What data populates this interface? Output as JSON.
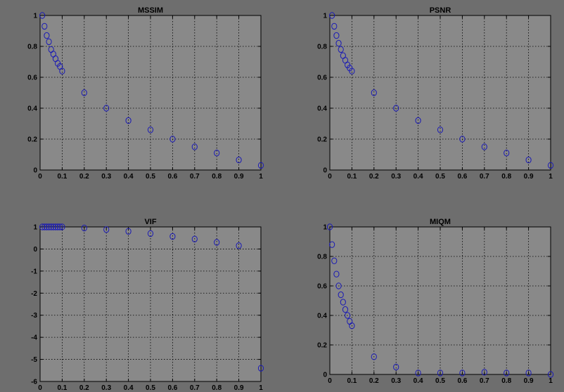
{
  "figure": {
    "colors": {
      "figure_bg": "#6e6e6e",
      "axes_bg": "#898989",
      "marker": "#1b1bb4",
      "text": "#000000"
    }
  },
  "chart_data": [
    {
      "type": "scatter",
      "title": "MSSIM",
      "xlim": [
        0,
        1
      ],
      "ylim": [
        0,
        1
      ],
      "xticks": [
        "0",
        "0.1",
        "0.2",
        "0.3",
        "0.4",
        "0.5",
        "0.6",
        "0.7",
        "0.8",
        "0.9",
        "1"
      ],
      "yticks": [
        "0",
        "0.2",
        "0.4",
        "0.6",
        "0.8",
        "1"
      ],
      "grid": true,
      "marker": "circle",
      "x": [
        0.01,
        0.02,
        0.03,
        0.04,
        0.05,
        0.06,
        0.07,
        0.08,
        0.09,
        0.1,
        0.2,
        0.3,
        0.4,
        0.5,
        0.6,
        0.7,
        0.8,
        0.9,
        1.0
      ],
      "y": [
        1.0,
        0.93,
        0.87,
        0.83,
        0.78,
        0.75,
        0.72,
        0.69,
        0.67,
        0.64,
        0.5,
        0.4,
        0.32,
        0.26,
        0.2,
        0.15,
        0.11,
        0.065,
        0.03
      ]
    },
    {
      "type": "scatter",
      "title": "PSNR",
      "xlim": [
        0,
        1
      ],
      "ylim": [
        0,
        1
      ],
      "xticks": [
        "0",
        "0.1",
        "0.2",
        "0.3",
        "0.4",
        "0.5",
        "0.6",
        "0.7",
        "0.8",
        "0.9",
        "1"
      ],
      "yticks": [
        "0",
        "0.2",
        "0.4",
        "0.6",
        "0.8",
        "1"
      ],
      "grid": true,
      "marker": "circle",
      "x": [
        0.01,
        0.02,
        0.03,
        0.04,
        0.05,
        0.06,
        0.07,
        0.08,
        0.09,
        0.1,
        0.2,
        0.3,
        0.4,
        0.5,
        0.6,
        0.7,
        0.8,
        0.9,
        1.0
      ],
      "y": [
        1.0,
        0.93,
        0.87,
        0.82,
        0.78,
        0.74,
        0.71,
        0.68,
        0.66,
        0.64,
        0.5,
        0.4,
        0.32,
        0.26,
        0.2,
        0.15,
        0.11,
        0.065,
        0.03
      ]
    },
    {
      "type": "scatter",
      "title": "VIF",
      "xlim": [
        0,
        1
      ],
      "ylim": [
        -6,
        1
      ],
      "xticks": [
        "0",
        "0.1",
        "0.2",
        "0.3",
        "0.4",
        "0.5",
        "0.6",
        "0.7",
        "0.8",
        "0.9",
        "1"
      ],
      "yticks": [
        "-6",
        "-5",
        "-4",
        "-3",
        "-2",
        "-1",
        "0",
        "1"
      ],
      "grid": true,
      "marker": "circle",
      "x": [
        0.01,
        0.02,
        0.03,
        0.04,
        0.05,
        0.06,
        0.07,
        0.08,
        0.09,
        0.1,
        0.2,
        0.3,
        0.4,
        0.5,
        0.6,
        0.7,
        0.8,
        0.9,
        1.0
      ],
      "y": [
        1.0,
        1.0,
        1.0,
        1.0,
        1.0,
        1.0,
        1.0,
        1.0,
        1.0,
        1.0,
        0.95,
        0.88,
        0.8,
        0.7,
        0.57,
        0.45,
        0.3,
        0.15,
        -5.4
      ]
    },
    {
      "type": "scatter",
      "title": "MIQM",
      "xlim": [
        0,
        1
      ],
      "ylim": [
        0,
        1
      ],
      "xticks": [
        "0",
        "0.1",
        "0.2",
        "0.3",
        "0.4",
        "0.5",
        "0.6",
        "0.7",
        "0.8",
        "0.9",
        "1"
      ],
      "yticks": [
        "0",
        "0.2",
        "0.4",
        "0.6",
        "0.8",
        "1"
      ],
      "grid": true,
      "marker": "circle",
      "x": [
        0.0,
        0.01,
        0.02,
        0.03,
        0.04,
        0.05,
        0.06,
        0.07,
        0.08,
        0.09,
        0.1,
        0.2,
        0.3,
        0.4,
        0.5,
        0.6,
        0.7,
        0.8,
        0.9,
        1.0
      ],
      "y": [
        1.0,
        0.88,
        0.77,
        0.68,
        0.6,
        0.54,
        0.49,
        0.44,
        0.4,
        0.36,
        0.33,
        0.12,
        0.05,
        0.01,
        0.01,
        0.01,
        0.015,
        0.01,
        0.01,
        0.0
      ]
    }
  ]
}
